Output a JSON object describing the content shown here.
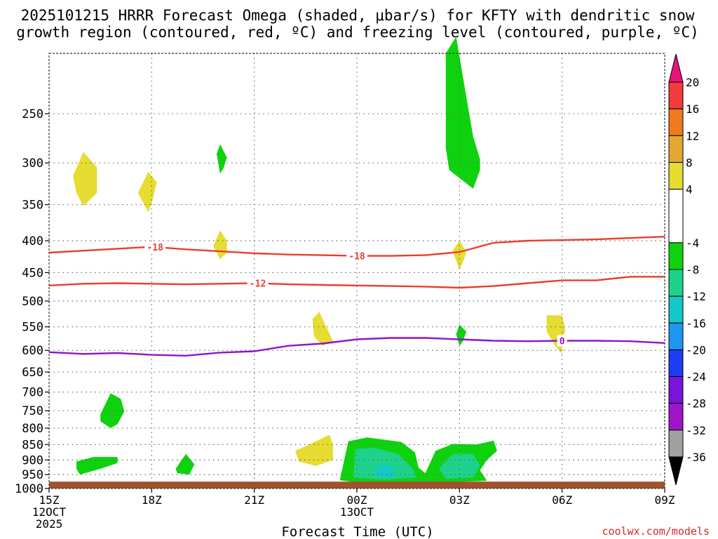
{
  "chart_data": {
    "type": "time-height cross section",
    "title_line1": "2025101215 HRRR Forecast Omega (shaded, μbar/s) for KFTY with dendritic snow",
    "title_line2": "growth region (contoured, red, ºC) and freezing level (contoured, purple, ºC)",
    "xlabel": "Forecast Time (UTC)",
    "credit": "coolwx.com/models",
    "x_range_hours": [
      15,
      33
    ],
    "y_range_mb": [
      1000,
      200
    ],
    "x_ticks": [
      {
        "hour": 15,
        "lines": [
          "15Z",
          "12OCT",
          "2025"
        ]
      },
      {
        "hour": 18,
        "lines": [
          "18Z"
        ]
      },
      {
        "hour": 21,
        "lines": [
          "21Z"
        ]
      },
      {
        "hour": 24,
        "lines": [
          "00Z",
          "13OCT"
        ]
      },
      {
        "hour": 27,
        "lines": [
          "03Z"
        ]
      },
      {
        "hour": 30,
        "lines": [
          "06Z"
        ]
      },
      {
        "hour": 33,
        "lines": [
          "09Z"
        ]
      }
    ],
    "y_ticks": [
      250,
      300,
      350,
      400,
      450,
      500,
      550,
      600,
      650,
      700,
      750,
      800,
      850,
      900,
      950,
      1000
    ],
    "y_grid": [
      250,
      300,
      350,
      400,
      450,
      500,
      550,
      600,
      650,
      700,
      750,
      800,
      850,
      900,
      950
    ],
    "ground_pressure_mb": 975,
    "colors": {
      "ground": "#a0522d",
      "grid": "#666666",
      "dendritic": "#ef3b2c",
      "freezing": "#9313c8",
      "bg": "#ffffff"
    },
    "colorbar": {
      "labels": [
        "20",
        "16",
        "12",
        "8",
        "4",
        "-4",
        "-8",
        "-12",
        "-16",
        "-20",
        "-24",
        "-28",
        "-32",
        "-36"
      ],
      "boundaries": [
        20,
        16,
        12,
        8,
        4,
        -4,
        -8,
        -12,
        -16,
        -20,
        -24,
        -28,
        -32,
        -36
      ],
      "bins": [
        {
          "range": [
            16,
            20
          ],
          "color": "#f03c3c"
        },
        {
          "range": [
            12,
            16
          ],
          "color": "#f07a1e"
        },
        {
          "range": [
            8,
            12
          ],
          "color": "#e3a832"
        },
        {
          "range": [
            4,
            8
          ],
          "color": "#e6dc32"
        },
        {
          "range": [
            -4,
            4
          ],
          "color": "#ffffff"
        },
        {
          "range": [
            -8,
            -4
          ],
          "color": "#0fd20f"
        },
        {
          "range": [
            -12,
            -8
          ],
          "color": "#1ed28c"
        },
        {
          "range": [
            -16,
            -12
          ],
          "color": "#14c8c8"
        },
        {
          "range": [
            -20,
            -16
          ],
          "color": "#1e96f0"
        },
        {
          "range": [
            -24,
            -20
          ],
          "color": "#1e3cf0"
        },
        {
          "range": [
            -28,
            -24
          ],
          "color": "#7814dc"
        },
        {
          "range": [
            -32,
            -28
          ],
          "color": "#a014c8"
        },
        {
          "range": [
            -36,
            -32
          ],
          "color": "#a0a0a0"
        }
      ],
      "top_arrow_color": "#e6147a",
      "bottom_arrow_color": "#000000"
    },
    "omega_regions": [
      {
        "name": "up-yellow-a",
        "value": 6,
        "color": "#e6dc32",
        "points": [
          [
            15.7,
            315
          ],
          [
            16.0,
            288
          ],
          [
            16.4,
            305
          ],
          [
            16.4,
            335
          ],
          [
            16.0,
            352
          ],
          [
            15.8,
            335
          ]
        ]
      },
      {
        "name": "up-yellow-b",
        "value": 6,
        "color": "#e6dc32",
        "points": [
          [
            17.6,
            335
          ],
          [
            17.9,
            310
          ],
          [
            18.15,
            322
          ],
          [
            18.0,
            348
          ],
          [
            17.9,
            360
          ]
        ]
      },
      {
        "name": "down-green-c",
        "value": -6,
        "color": "#0fd20f",
        "points": [
          [
            19.9,
            290
          ],
          [
            20.0,
            280
          ],
          [
            20.2,
            294
          ],
          [
            20.1,
            306
          ],
          [
            20.0,
            312
          ]
        ]
      },
      {
        "name": "up-yellow-d",
        "value": 6,
        "color": "#e6dc32",
        "points": [
          [
            19.8,
            408
          ],
          [
            20.0,
            385
          ],
          [
            20.2,
            400
          ],
          [
            20.2,
            418
          ],
          [
            20.0,
            428
          ]
        ]
      },
      {
        "name": "down-green-e",
        "value": -6,
        "color": "#0fd20f",
        "points": [
          [
            26.6,
            200
          ],
          [
            26.9,
            188
          ],
          [
            27.2,
            235
          ],
          [
            27.4,
            272
          ],
          [
            27.6,
            296
          ],
          [
            27.6,
            308
          ],
          [
            27.4,
            330
          ],
          [
            26.7,
            308
          ],
          [
            26.6,
            284
          ],
          [
            26.6,
            235
          ]
        ]
      },
      {
        "name": "up-yellow-f",
        "value": 6,
        "color": "#e6dc32",
        "points": [
          [
            26.8,
            415
          ],
          [
            27.0,
            400
          ],
          [
            27.2,
            417
          ],
          [
            27.1,
            433
          ],
          [
            27.0,
            445
          ]
        ]
      },
      {
        "name": "up-yellow-g",
        "value": 6,
        "color": "#e6dc32",
        "points": [
          [
            22.7,
            535
          ],
          [
            22.9,
            520
          ],
          [
            23.3,
            580
          ],
          [
            23.0,
            590
          ],
          [
            22.75,
            570
          ]
        ]
      },
      {
        "name": "down-green-h",
        "value": -6,
        "color": "#0fd20f",
        "points": [
          [
            26.9,
            565
          ],
          [
            27.0,
            545
          ],
          [
            27.2,
            560
          ],
          [
            27.1,
            580
          ],
          [
            27.0,
            590
          ]
        ]
      },
      {
        "name": "up-yellow-i",
        "value": 6,
        "color": "#e6dc32",
        "points": [
          [
            29.55,
            527
          ],
          [
            30.0,
            527
          ],
          [
            30.1,
            558
          ],
          [
            30.0,
            575
          ],
          [
            30.0,
            608
          ],
          [
            29.8,
            590
          ],
          [
            29.55,
            560
          ]
        ]
      },
      {
        "name": "down-green-j",
        "value": -6,
        "color": "#0fd20f",
        "points": [
          [
            16.5,
            760
          ],
          [
            16.8,
            703
          ],
          [
            17.1,
            718
          ],
          [
            17.2,
            752
          ],
          [
            17.0,
            788
          ],
          [
            16.8,
            800
          ],
          [
            16.5,
            780
          ]
        ]
      },
      {
        "name": "down-green-k",
        "value": -6,
        "color": "#0fd20f",
        "points": [
          [
            15.8,
            905
          ],
          [
            16.3,
            890
          ],
          [
            17.0,
            890
          ],
          [
            17.0,
            910
          ],
          [
            16.5,
            930
          ],
          [
            15.9,
            950
          ],
          [
            15.8,
            930
          ]
        ]
      },
      {
        "name": "down-green-l",
        "value": -6,
        "color": "#0fd20f",
        "points": [
          [
            18.7,
            930
          ],
          [
            19.0,
            880
          ],
          [
            19.25,
            915
          ],
          [
            19.1,
            950
          ],
          [
            18.75,
            945
          ]
        ]
      },
      {
        "name": "up-yellow-m",
        "value": 6,
        "color": "#e6dc32",
        "points": [
          [
            22.2,
            870
          ],
          [
            22.7,
            845
          ],
          [
            23.2,
            820
          ],
          [
            23.3,
            850
          ],
          [
            23.3,
            900
          ],
          [
            22.8,
            920
          ],
          [
            22.3,
            905
          ]
        ]
      },
      {
        "name": "down-green-n",
        "value": -6,
        "color": "#0fd20f",
        "points": [
          [
            23.5,
            970
          ],
          [
            23.75,
            840
          ],
          [
            24.3,
            828
          ],
          [
            24.8,
            835
          ],
          [
            25.3,
            842
          ],
          [
            25.7,
            875
          ],
          [
            25.8,
            925
          ],
          [
            26.0,
            945
          ],
          [
            26.3,
            870
          ],
          [
            26.8,
            848
          ],
          [
            27.5,
            850
          ],
          [
            28.0,
            838
          ],
          [
            28.1,
            870
          ],
          [
            27.8,
            900
          ],
          [
            27.6,
            935
          ],
          [
            27.8,
            972
          ],
          [
            26.5,
            978
          ],
          [
            25.0,
            978
          ],
          [
            24.0,
            978
          ]
        ]
      },
      {
        "name": "down-teal-o",
        "value": -10,
        "color": "#1ed28c",
        "points": [
          [
            23.9,
            960
          ],
          [
            23.95,
            865
          ],
          [
            24.5,
            860
          ],
          [
            25.2,
            880
          ],
          [
            25.6,
            925
          ],
          [
            25.75,
            960
          ],
          [
            24.8,
            968
          ]
        ]
      },
      {
        "name": "down-teal-p",
        "value": -10,
        "color": "#1ed28c",
        "points": [
          [
            26.4,
            930
          ],
          [
            26.8,
            880
          ],
          [
            27.4,
            880
          ],
          [
            27.6,
            920
          ],
          [
            27.4,
            960
          ],
          [
            26.6,
            965
          ]
        ]
      },
      {
        "name": "down-cyan-q",
        "value": -14,
        "color": "#14c8c8",
        "points": [
          [
            24.5,
            955
          ],
          [
            24.6,
            920
          ],
          [
            24.85,
            916
          ],
          [
            25.1,
            930
          ],
          [
            25.05,
            960
          ]
        ]
      }
    ],
    "contours": [
      {
        "name": "dendritic-minus18",
        "series": "dendritic snow growth region",
        "temp_c": -18,
        "label": "-18",
        "color": "#ef3b2c",
        "x": [
          15,
          16,
          17,
          18,
          19,
          20,
          21,
          22,
          23,
          24,
          25,
          26,
          27,
          28,
          29,
          30,
          31,
          32,
          33
        ],
        "y": [
          418,
          415,
          412,
          409,
          413,
          416,
          419,
          421,
          422,
          423,
          423,
          422,
          417,
          403,
          400,
          399,
          398,
          396,
          394
        ],
        "label_x": [
          18.1,
          24.0
        ]
      },
      {
        "name": "dendritic-minus12",
        "series": "dendritic snow growth region",
        "temp_c": -12,
        "label": "-12",
        "color": "#ef3b2c",
        "x": [
          15,
          16,
          17,
          18,
          19,
          20,
          21,
          22,
          23,
          24,
          25,
          26,
          27,
          28,
          29,
          30,
          31,
          32,
          33
        ],
        "y": [
          472,
          469,
          468,
          469,
          470,
          469,
          468,
          470,
          471,
          472,
          473,
          474,
          476,
          473,
          468,
          463,
          463,
          457,
          457
        ],
        "label_x": [
          21.1
        ]
      },
      {
        "name": "freezing-level-0",
        "series": "freezing level",
        "temp_c": 0,
        "label": "0",
        "color": "#9313c8",
        "x": [
          15,
          16,
          17,
          18,
          19,
          20,
          21,
          22,
          23,
          24,
          25,
          26,
          27,
          28,
          29,
          30,
          31,
          32,
          33
        ],
        "y": [
          604,
          608,
          606,
          610,
          612,
          605,
          602,
          590,
          585,
          576,
          573,
          573,
          576,
          579,
          580,
          579,
          579,
          580,
          584
        ],
        "label_x": [
          30.0
        ]
      }
    ]
  }
}
